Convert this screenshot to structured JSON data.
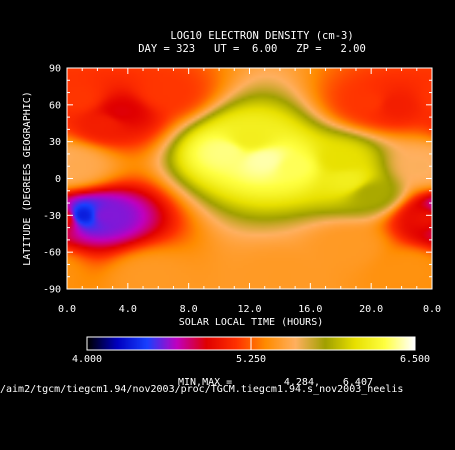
{
  "chart_data": {
    "type": "heatmap",
    "title": "LOG10 ELECTRON DENSITY (cm-3)",
    "subtitle": "DAY = 323   UT =  6.00   ZP =   2.00",
    "xlabel": "SOLAR LOCAL TIME (HOURS)",
    "ylabel": "LATITUDE (DEGREES GEOGRAPHIC)",
    "x_ticks": [
      "0.0",
      "4.0",
      "8.0",
      "12.0",
      "16.0",
      "20.0",
      "0.0"
    ],
    "y_ticks": [
      "90",
      "60",
      "30",
      "0",
      "-30",
      "-60",
      "-90"
    ],
    "xlim": [
      0,
      24
    ],
    "ylim": [
      -90,
      90
    ],
    "colorbar": {
      "min": 4.0,
      "max": 6.5,
      "tick_labels": [
        "4.000",
        "5.250",
        "6.500"
      ],
      "colors": [
        "#000000",
        "#0000c0",
        "#1840ff",
        "#c000c0",
        "#e00000",
        "#ff3000",
        "#ff8c00",
        "#ffb060",
        "#a0a000",
        "#e8e000",
        "#ffff40",
        "#ffffff"
      ]
    },
    "minmax_label": "MIN,MAX =",
    "min_value": "4.284,",
    "max_value": "6.407",
    "features": [
      {
        "x": 13.0,
        "y": 15,
        "value": 6.4
      },
      {
        "x": 10.5,
        "y": 22,
        "value": 6.35
      },
      {
        "x": 15.0,
        "y": 10,
        "value": 6.3
      },
      {
        "x": 12.0,
        "y": 32,
        "value": 6.15
      },
      {
        "x": 18.5,
        "y": -2,
        "value": 6.15
      },
      {
        "x": 20.0,
        "y": -12,
        "value": 5.85
      },
      {
        "x": 18.0,
        "y": 15,
        "value": 6.05
      },
      {
        "x": 1.0,
        "y": -30,
        "value": 4.32
      },
      {
        "x": 2.5,
        "y": -30,
        "value": 4.6
      },
      {
        "x": 3.5,
        "y": 54,
        "value": 4.9
      },
      {
        "x": 2.5,
        "y": 45,
        "value": 5.05
      },
      {
        "x": 21.5,
        "y": 60,
        "value": 5.05
      },
      {
        "x": 23.8,
        "y": -32,
        "value": 5.0
      },
      {
        "x": 0.8,
        "y": 65,
        "value": 5.15
      },
      {
        "x": 6.5,
        "y": 70,
        "value": 5.15
      },
      {
        "x": 20.0,
        "y": 62,
        "value": 5.15
      },
      {
        "x": 0.5,
        "y": 10,
        "value": 5.55
      },
      {
        "x": 23.5,
        "y": 10,
        "value": 5.6
      },
      {
        "x": 5.5,
        "y": -80,
        "value": 5.45
      },
      {
        "x": 14.0,
        "y": -80,
        "value": 5.45
      },
      {
        "x": 22.5,
        "y": -75,
        "value": 5.4
      },
      {
        "x": 18.5,
        "y": -55,
        "value": 5.45
      }
    ]
  },
  "footer": {
    "path": "/aim2/tgcm/tiegcm1.94/nov2003/proc/TGCM.tiegcm1.94.s_nov2003_heelis"
  }
}
